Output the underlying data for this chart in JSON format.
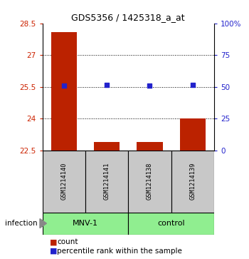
{
  "title": "GDS5356 / 1425318_a_at",
  "samples": [
    "GSM1214140",
    "GSM1214141",
    "GSM1214138",
    "GSM1214139"
  ],
  "group_labels": [
    "MNV-1",
    "control"
  ],
  "group_ranges": [
    [
      0,
      1
    ],
    [
      2,
      3
    ]
  ],
  "bar_color": "#BB2200",
  "dot_color": "#2222CC",
  "ylim_left": [
    22.5,
    28.5
  ],
  "ylim_right": [
    0,
    100
  ],
  "yticks_left": [
    22.5,
    24.0,
    25.5,
    27.0,
    28.5
  ],
  "yticks_right": [
    0,
    25,
    50,
    75,
    100
  ],
  "ytick_labels_left": [
    "22.5",
    "24",
    "25.5",
    "27",
    "28.5"
  ],
  "ytick_labels_right": [
    "0",
    "25",
    "50",
    "75",
    "100%"
  ],
  "hlines": [
    27.0,
    25.5,
    24.0
  ],
  "bar_values": [
    28.1,
    22.88,
    22.88,
    24.0
  ],
  "dot_values": [
    25.55,
    25.6,
    25.55,
    25.6
  ],
  "bar_bottom": 22.5,
  "legend_count_label": "count",
  "legend_pct_label": "percentile rank within the sample",
  "infection_label": "infection",
  "sample_box_color": "#C8C8C8",
  "group_box_color": "#90EE90",
  "left_tick_color": "#CC2200",
  "right_tick_color": "#2222CC",
  "bar_width": 0.6
}
